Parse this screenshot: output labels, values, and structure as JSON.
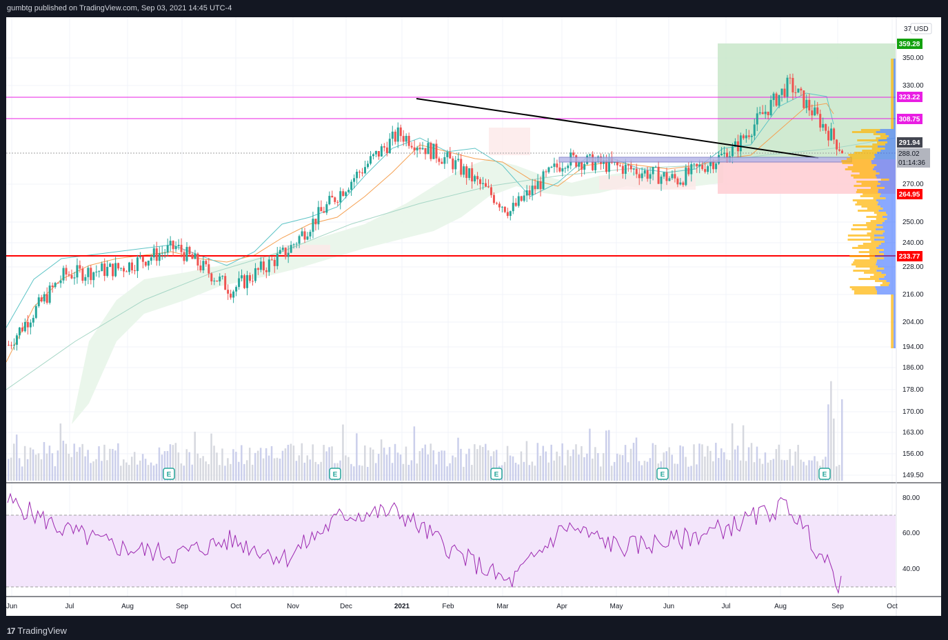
{
  "header": {
    "text": "gumbtg published on TradingView.com, Sep 03, 2021 14:45 UTC-4"
  },
  "footer": {
    "brand": "TradingView",
    "logo": "17"
  },
  "currency": "USD",
  "price_axis": {
    "ticks": [
      "350.00",
      "330.00",
      "270.00",
      "250.00",
      "240.00",
      "228.00",
      "216.00",
      "204.00",
      "194.00",
      "186.00",
      "178.00",
      "170.00",
      "163.00",
      "156.00",
      "149.50"
    ],
    "top_partial": "37"
  },
  "rsi_axis": {
    "ticks": [
      "80.00",
      "60.00",
      "40.00"
    ]
  },
  "time_axis": [
    "Jun",
    "Jul",
    "Aug",
    "Sep",
    "Oct",
    "Nov",
    "Dec",
    "2021",
    "Feb",
    "Mar",
    "Apr",
    "May",
    "Jun",
    "Jul",
    "Aug",
    "Sep",
    "Oct"
  ],
  "earnings_marker": "E",
  "labels": {
    "target": "359.28",
    "resistance_1": "323.22",
    "resistance_2": "308.75",
    "prev_close": "291.94",
    "last_price": "288.02",
    "countdown": "01:14:36",
    "stop": "264.95",
    "support": "233.77"
  },
  "colors": {
    "up": "#26a69a",
    "down": "#ef5350",
    "magenta": "#e91ee3",
    "red": "#ff0000",
    "green_label": "#13a10e",
    "rsi": "#9c27b0",
    "rsi_band": "#f3e5fb"
  },
  "chart_data": {
    "type": "candlestick",
    "ylim": [
      149.5,
      375
    ],
    "y_scale": "log",
    "x": [
      "Jun",
      "Jul",
      "Aug",
      "Sep",
      "Oct",
      "Nov",
      "Dec",
      "2021",
      "Feb",
      "Mar",
      "Apr",
      "May",
      "Jun",
      "Jul",
      "Aug",
      "Sep",
      "Oct"
    ],
    "close_approx": [
      195,
      225,
      228,
      238,
      218,
      236,
      268,
      300,
      282,
      256,
      285,
      280,
      273,
      290,
      332,
      288
    ],
    "horizontal_levels": [
      359.28,
      323.22,
      308.75,
      291.94,
      264.95,
      233.77
    ],
    "last_price": 288.02,
    "rsi": {
      "ylim": [
        25,
        85
      ],
      "band": [
        30,
        70
      ],
      "values": [
        78,
        62,
        52,
        48,
        56,
        46,
        70,
        72,
        50,
        32,
        64,
        52,
        56,
        64,
        76,
        28
      ]
    }
  }
}
